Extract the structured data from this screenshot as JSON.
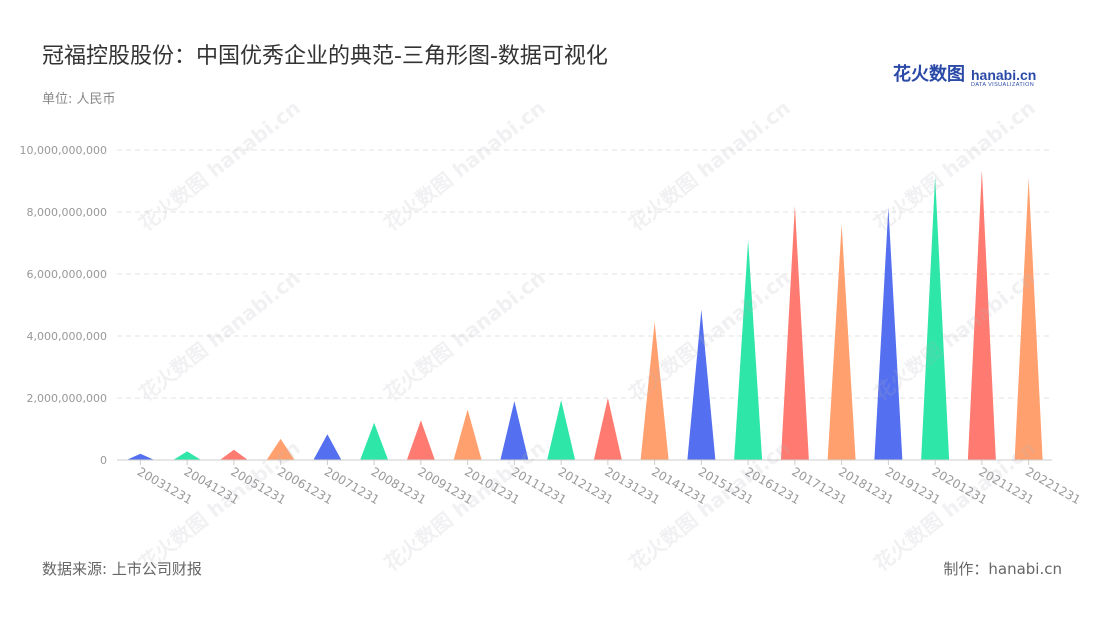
{
  "header": {
    "title": "冠福控股股份：中国优秀企业的典范-三角形图-数据可视化",
    "unit": "单位: 人民币"
  },
  "logo": {
    "cn": "花火数图",
    "en": "hanabi.cn",
    "tagline": "DATA VISUALIZATION"
  },
  "footer": {
    "source": "数据来源: 上市公司财报",
    "maker": "制作：hanabi.cn"
  },
  "watermark": "花火数图 hanabi.cn",
  "colors": {
    "palette": [
      "#5470f0",
      "#2ee6a8",
      "#ff7a70",
      "#ffa06e"
    ],
    "grid": "#e3e3e3",
    "tick_text": "#999999",
    "axis": "#cccccc"
  },
  "chart_data": {
    "type": "bar",
    "style": "triangle",
    "categories": [
      "20031231",
      "20041231",
      "20051231",
      "20061231",
      "20071231",
      "20081231",
      "20091231",
      "20101231",
      "20111231",
      "20121231",
      "20131231",
      "20141231",
      "20151231",
      "20161231",
      "20171231",
      "20181231",
      "20191231",
      "20201231",
      "20211231",
      "20221231"
    ],
    "values": [
      200000000,
      280000000,
      330000000,
      680000000,
      830000000,
      1200000000,
      1280000000,
      1630000000,
      1900000000,
      1930000000,
      2000000000,
      4450000000,
      4850000000,
      7100000000,
      8200000000,
      7600000000,
      8150000000,
      9150000000,
      9350000000,
      9100000000
    ],
    "color_cycle": [
      "#5470f0",
      "#2ee6a8",
      "#ff7a70",
      "#ffa06e"
    ],
    "yticks": [
      "0",
      "2,000,000,000",
      "4,000,000,000",
      "6,000,000,000",
      "8,000,000,000",
      "10,000,000,000"
    ],
    "ylim": [
      0,
      10000000000
    ],
    "grid": true,
    "xlabel": "",
    "ylabel": ""
  }
}
